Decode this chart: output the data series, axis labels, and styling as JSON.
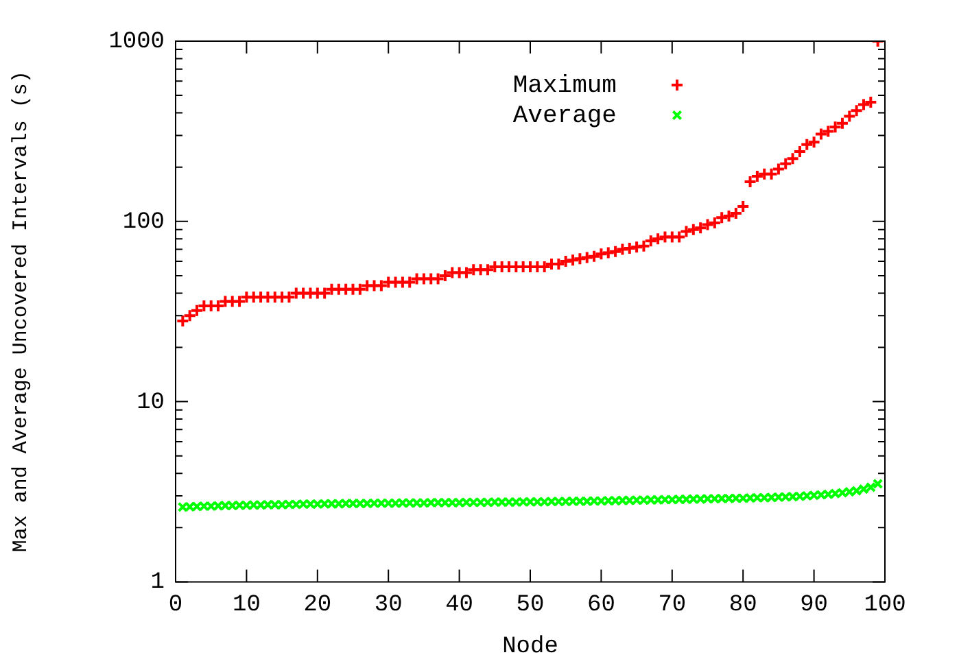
{
  "chart_data": {
    "type": "scatter",
    "xlabel": "Node",
    "ylabel": "Max and Average Uncovered Intervals (s)",
    "x": [
      1,
      2,
      3,
      4,
      5,
      6,
      7,
      8,
      9,
      10,
      11,
      12,
      13,
      14,
      15,
      16,
      17,
      18,
      19,
      20,
      21,
      22,
      23,
      24,
      25,
      26,
      27,
      28,
      29,
      30,
      31,
      32,
      33,
      34,
      35,
      36,
      37,
      38,
      39,
      40,
      41,
      42,
      43,
      44,
      45,
      46,
      47,
      48,
      49,
      50,
      51,
      52,
      53,
      54,
      55,
      56,
      57,
      58,
      59,
      60,
      61,
      62,
      63,
      64,
      65,
      66,
      67,
      68,
      69,
      70,
      71,
      72,
      73,
      74,
      75,
      76,
      77,
      78,
      79,
      80,
      81,
      82,
      83,
      84,
      85,
      86,
      87,
      88,
      89,
      90,
      91,
      92,
      93,
      94,
      95,
      96,
      97,
      98,
      99
    ],
    "series": [
      {
        "name": "Maximum",
        "color": "#ff0000",
        "marker": "cross",
        "values": [
          28,
          30,
          32,
          34,
          34,
          34,
          36,
          36,
          36,
          38,
          38,
          38,
          38,
          38,
          38,
          38,
          40,
          40,
          40,
          40,
          40,
          42,
          42,
          42,
          42,
          42,
          44,
          44,
          44,
          46,
          46,
          46,
          46,
          48,
          48,
          48,
          48,
          50,
          52,
          52,
          52,
          54,
          54,
          54,
          56,
          56,
          56,
          56,
          56,
          56,
          56,
          56,
          58,
          58,
          60,
          61,
          62,
          63,
          64,
          66,
          67,
          68,
          70,
          71,
          72,
          73,
          78,
          80,
          82,
          82,
          82,
          88,
          90,
          92,
          96,
          98,
          105,
          107,
          111,
          121,
          166,
          178,
          183,
          183,
          195,
          209,
          223,
          244,
          267,
          275,
          305,
          316,
          334,
          350,
          383,
          412,
          445,
          459,
          1000
        ]
      },
      {
        "name": "Average",
        "color": "#00ff00",
        "marker": "cross",
        "values": [
          2.6,
          2.61,
          2.62,
          2.63,
          2.63,
          2.64,
          2.65,
          2.65,
          2.66,
          2.66,
          2.67,
          2.67,
          2.68,
          2.68,
          2.68,
          2.69,
          2.69,
          2.7,
          2.7,
          2.7,
          2.71,
          2.71,
          2.71,
          2.72,
          2.72,
          2.72,
          2.72,
          2.73,
          2.73,
          2.73,
          2.73,
          2.74,
          2.74,
          2.74,
          2.74,
          2.75,
          2.75,
          2.75,
          2.75,
          2.75,
          2.76,
          2.76,
          2.76,
          2.76,
          2.77,
          2.77,
          2.77,
          2.77,
          2.78,
          2.78,
          2.78,
          2.78,
          2.79,
          2.79,
          2.79,
          2.8,
          2.8,
          2.8,
          2.81,
          2.81,
          2.82,
          2.82,
          2.83,
          2.83,
          2.84,
          2.84,
          2.85,
          2.85,
          2.86,
          2.86,
          2.87,
          2.87,
          2.88,
          2.88,
          2.89,
          2.89,
          2.9,
          2.9,
          2.91,
          2.91,
          2.92,
          2.93,
          2.93,
          2.94,
          2.95,
          2.96,
          2.97,
          2.98,
          3.0,
          3.02,
          3.04,
          3.06,
          3.09,
          3.12,
          3.16,
          3.2,
          3.27,
          3.35,
          3.5
        ]
      }
    ],
    "xlim": [
      0,
      100
    ],
    "xticks": [
      0,
      10,
      20,
      30,
      40,
      50,
      60,
      70,
      80,
      90,
      100
    ],
    "ylim": [
      1,
      1000
    ],
    "yticks": [
      1,
      {
        "value": 2,
        "label": null
      },
      {
        "value": 3,
        "label": null
      },
      {
        "value": 4,
        "label": null
      },
      {
        "value": 5,
        "label": null
      },
      {
        "value": 6,
        "label": null
      },
      {
        "value": 7,
        "label": null
      },
      {
        "value": 8,
        "label": null
      },
      {
        "value": 9,
        "label": null
      },
      10,
      {
        "value": 20,
        "label": null
      },
      {
        "value": 30,
        "label": null
      },
      {
        "value": 40,
        "label": null
      },
      {
        "value": 50,
        "label": null
      },
      {
        "value": 60,
        "label": null
      },
      {
        "value": 70,
        "label": null
      },
      {
        "value": 80,
        "label": null
      },
      {
        "value": 90,
        "label": null
      },
      100,
      {
        "value": 200,
        "label": null
      },
      {
        "value": 300,
        "label": null
      },
      {
        "value": 400,
        "label": null
      },
      {
        "value": 500,
        "label": null
      },
      {
        "value": 600,
        "label": null
      },
      {
        "value": 700,
        "label": null
      },
      {
        "value": 800,
        "label": null
      },
      {
        "value": 900,
        "label": null
      },
      1000
    ],
    "log": true,
    "grid": false,
    "legend": "top"
  }
}
